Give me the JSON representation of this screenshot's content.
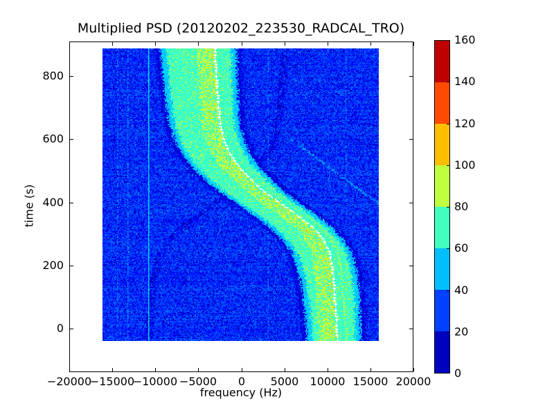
{
  "title": "Multiplied PSD (20120202_223530_RADCAL_TRO)",
  "axes": {
    "xlabel": "frequency (Hz)",
    "ylabel": "time (s)",
    "x_tick_values": [
      -20000,
      -15000,
      -10000,
      -5000,
      0,
      5000,
      10000,
      15000,
      20000
    ],
    "x_tick_labels": [
      "−20000",
      "−15000",
      "−10000",
      "−5000",
      "0",
      "5000",
      "10000",
      "15000",
      "20000"
    ],
    "y_tick_values": [
      0,
      200,
      400,
      600,
      800
    ],
    "y_tick_labels": [
      "0",
      "200",
      "400",
      "600",
      "800"
    ]
  },
  "colorbar": {
    "colormap": "jet",
    "levels": 8,
    "vmin": 0,
    "vmax": 160,
    "tick_values": [
      0,
      20,
      40,
      60,
      80,
      100,
      120,
      140,
      160
    ],
    "tick_labels": [
      "0",
      "20",
      "40",
      "60",
      "80",
      "100",
      "120",
      "140",
      "160"
    ],
    "segment_colors_bottom_to_top": [
      "#0000bf",
      "#0040ff",
      "#00bfff",
      "#40ffbf",
      "#bfff40",
      "#ffbf00",
      "#ff4a00",
      "#bf0000"
    ]
  },
  "chart_data": {
    "type": "heatmap",
    "subtype": "spectrogram",
    "title": "Multiplied PSD (20120202_223530_RADCAL_TRO)",
    "xlabel": "frequency (Hz)",
    "ylabel": "time (s)",
    "xlim": [
      -20000,
      20000
    ],
    "ylim": [
      -140,
      910
    ],
    "grid": false,
    "legend": false,
    "image_extent": {
      "frequency_hz": [
        -16100,
        15900
      ],
      "time_s": [
        -40,
        888
      ]
    },
    "value_range": [
      0,
      160
    ],
    "background_noise_values": [
      7,
      42
    ],
    "signal_band": {
      "core_values": [
        64,
        78
      ],
      "speckle_values": [
        84,
        98
      ],
      "peak_values": [
        100,
        115
      ],
      "edge_values": [
        46,
        56
      ],
      "dark_border_values": [
        8,
        20
      ],
      "core_half_width_hz_top": 3800,
      "core_half_width_hz_bottom": 2500
    },
    "doppler_track_t_f": [
      [
        -40,
        10750
      ],
      [
        0,
        10700
      ],
      [
        100,
        10450
      ],
      [
        150,
        10200
      ],
      [
        200,
        9800
      ],
      [
        240,
        9300
      ],
      [
        280,
        8300
      ],
      [
        320,
        6900
      ],
      [
        360,
        5000
      ],
      [
        400,
        2900
      ],
      [
        440,
        900
      ],
      [
        480,
        -700
      ],
      [
        520,
        -2100
      ],
      [
        560,
        -3100
      ],
      [
        600,
        -3750
      ],
      [
        640,
        -4200
      ],
      [
        700,
        -4550
      ],
      [
        800,
        -4800
      ],
      [
        888,
        -5000
      ]
    ],
    "carrier_trace_offset_hz": [
      [
        -40,
        400
      ],
      [
        100,
        400
      ],
      [
        200,
        700
      ],
      [
        300,
        1400
      ],
      [
        450,
        1500
      ],
      [
        600,
        1700
      ],
      [
        700,
        1900
      ],
      [
        888,
        1900
      ]
    ],
    "secondary_lime_trace": {
      "offset_from_carrier_hz": -1100,
      "visible_below_t": 350
    },
    "vertical_lines_hz": [
      -14350,
      -13150,
      -10750,
      3150,
      12180
    ],
    "vertical_line_strengths": [
      0.35,
      0.5,
      1.0,
      0.4,
      0.3
    ],
    "mirror_ghost_track": true,
    "diagonal_streak_t_f": [
      [
        590,
        6300
      ],
      [
        390,
        16200
      ]
    ]
  }
}
